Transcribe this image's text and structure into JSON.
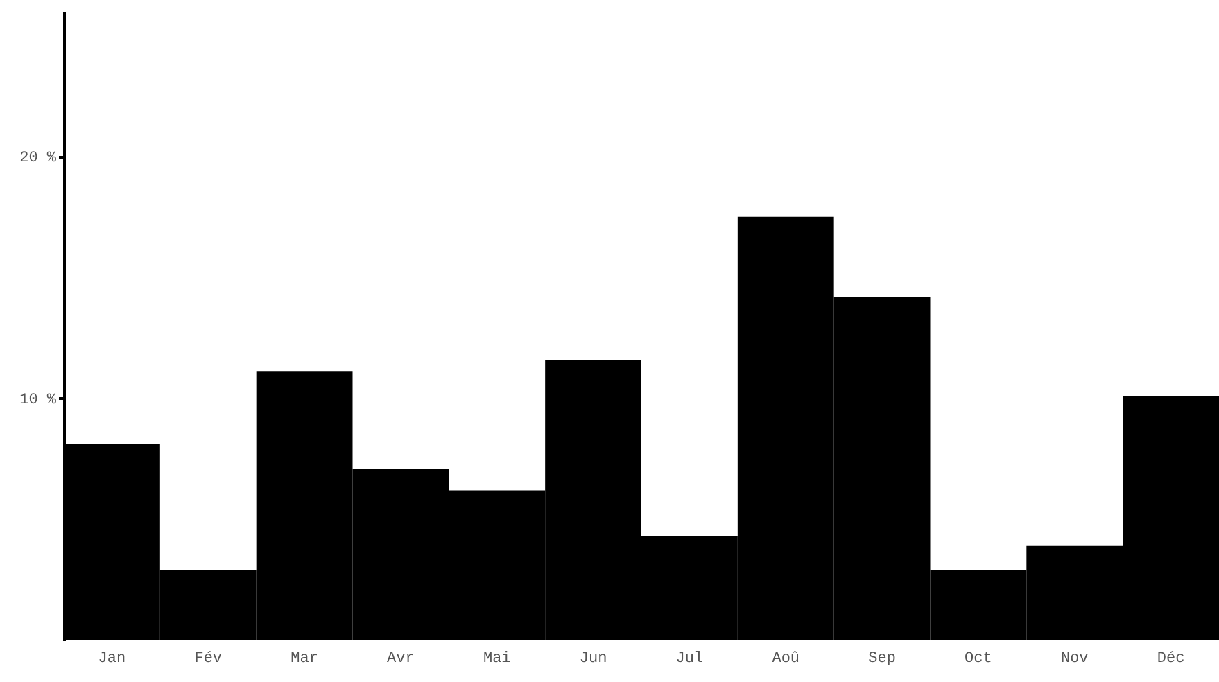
{
  "chart_data": {
    "type": "bar",
    "categories": [
      "Jan",
      "Fév",
      "Mar",
      "Avr",
      "Mai",
      "Jun",
      "Jul",
      "Aoû",
      "Sep",
      "Oct",
      "Nov",
      "Déc"
    ],
    "values": [
      8.1,
      2.9,
      11.1,
      7.1,
      6.2,
      11.6,
      4.3,
      17.5,
      14.2,
      2.9,
      3.9,
      10.1
    ],
    "color": "#000000",
    "ylim": [
      0,
      26
    ],
    "yticks": [
      {
        "value": 10,
        "label": "10 %"
      },
      {
        "value": 20,
        "label": "20 %"
      }
    ],
    "grid": false
  }
}
